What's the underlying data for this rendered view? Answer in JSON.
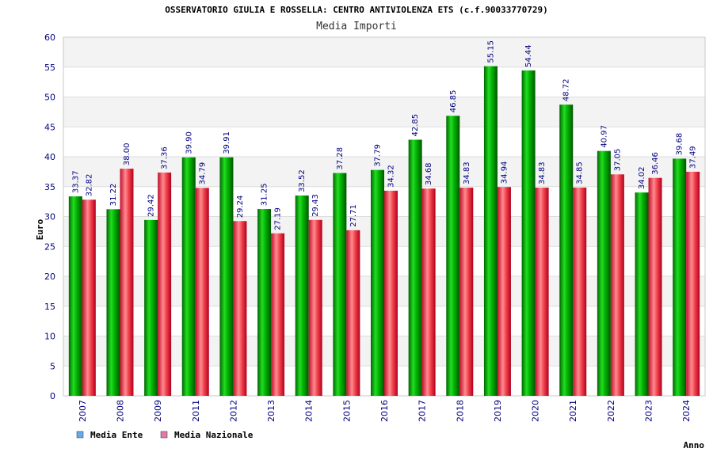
{
  "chart_data": {
    "type": "bar",
    "title": "OSSERVATORIO GIULIA E ROSSELLA: CENTRO ANTIVIOLENZA ETS (c.f.90033770729)",
    "subtitle": "Media Importi",
    "xlabel": "Anno",
    "ylabel": "Euro",
    "ylim": [
      0,
      60
    ],
    "yticks": [
      0,
      5,
      10,
      15,
      20,
      25,
      30,
      35,
      40,
      45,
      50,
      55,
      60
    ],
    "categories": [
      "2007",
      "2008",
      "2009",
      "2011",
      "2012",
      "2013",
      "2014",
      "2015",
      "2016",
      "2017",
      "2018",
      "2019",
      "2020",
      "2021",
      "2022",
      "2023",
      "2024"
    ],
    "series": [
      {
        "name": "Media Ente",
        "color": "#00a000",
        "legend_color": "#66aaee",
        "values": [
          33.37,
          31.22,
          29.42,
          39.9,
          39.91,
          31.25,
          33.52,
          37.28,
          37.79,
          42.85,
          46.85,
          55.15,
          54.44,
          48.72,
          40.97,
          34.02,
          39.68
        ],
        "labels": [
          "33.37",
          "31.22",
          "29.42",
          "39.90",
          "39.91",
          "31.25",
          "33.52",
          "37.28",
          "37.79",
          "42.85",
          "46.85",
          "55.15",
          "54.44",
          "48.72",
          "40.97",
          "34.02",
          "39.68"
        ]
      },
      {
        "name": "Media Nazionale",
        "color": "#e8303a",
        "legend_color": "#e07aa8",
        "values": [
          32.82,
          38.0,
          37.36,
          34.79,
          29.24,
          27.19,
          29.43,
          27.71,
          34.32,
          34.68,
          34.83,
          34.94,
          34.83,
          34.85,
          37.05,
          36.46,
          37.49
        ],
        "labels": [
          "32.82",
          "38.00",
          "37.36",
          "34.79",
          "29.24",
          "27.19",
          "29.43",
          "27.71",
          "34.32",
          "34.68",
          "34.83",
          "34.94",
          "34.83",
          "34.85",
          "37.05",
          "36.46",
          "37.49"
        ]
      }
    ],
    "grid": true,
    "legend_position": "bottom-left"
  }
}
